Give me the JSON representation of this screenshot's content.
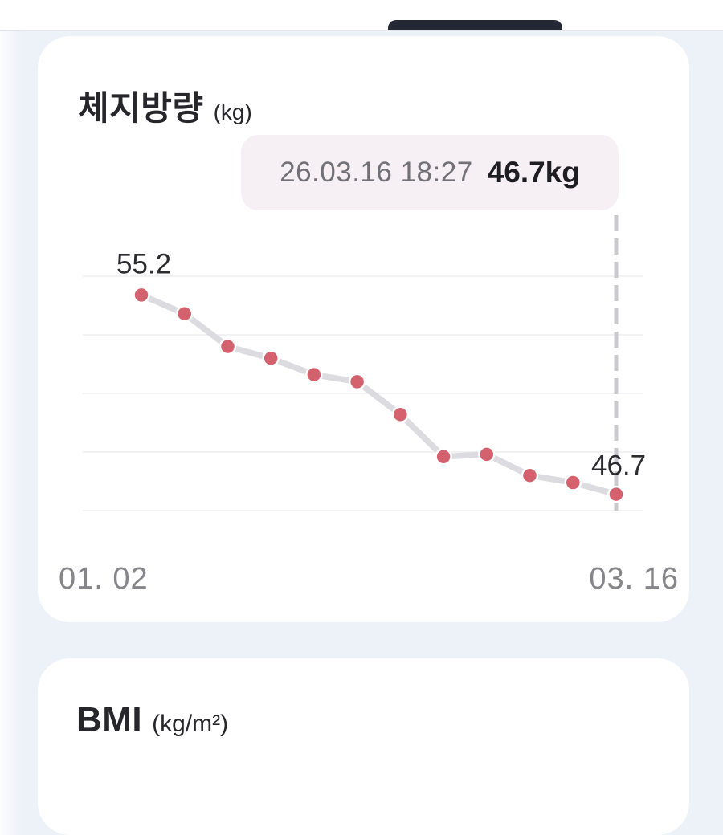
{
  "fat_card": {
    "title": "체지방량",
    "unit": "(kg)",
    "tooltip": {
      "datetime": "26.03.16 18:27",
      "value": "46.7kg"
    },
    "x_start_label": "01. 02",
    "x_end_label": "03. 16"
  },
  "bmi_card": {
    "title": "BMI",
    "unit": "(kg/m²)"
  },
  "chart_data": {
    "type": "line",
    "title": "체지방량 (kg)",
    "series": [
      {
        "name": "체지방량",
        "values": [
          55.2,
          54.4,
          53.0,
          52.5,
          51.8,
          51.5,
          50.1,
          48.3,
          48.4,
          47.5,
          47.2,
          46.7
        ]
      }
    ],
    "x_range": [
      "01. 02",
      "03. 16"
    ],
    "first_point_label": "55.2",
    "last_point_label": "46.7",
    "selected_point": {
      "datetime": "26.03.16 18:27",
      "value_kg": 46.7
    },
    "ylim": [
      46,
      56
    ],
    "gridline_count": 5,
    "grid": "horizontal-only",
    "legend": "none",
    "colors": {
      "dot": "#d4616e",
      "line": "#dcdce0",
      "grid": "#ededf0",
      "dashed_cursor": "#c9c9ce",
      "tooltip_bg": "#f6eff3"
    }
  }
}
